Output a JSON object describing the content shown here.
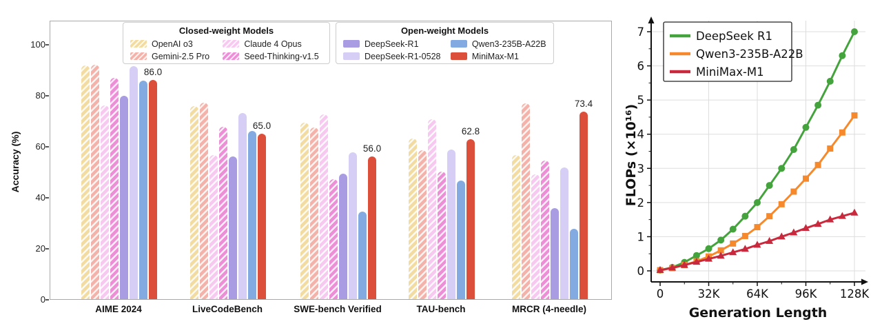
{
  "chart_data": [
    {
      "id": "benchmark-accuracy",
      "type": "bar",
      "title": "",
      "xlabel": "",
      "ylabel": "Accuracy (%)",
      "ylim": [
        0,
        100
      ],
      "yticks": [
        0,
        20,
        40,
        60,
        80,
        100
      ],
      "grid": false,
      "categories": [
        "AIME 2024",
        "LiveCodeBench",
        "SWE-bench Verified",
        "TAU-bench",
        "MRCR (4-needle)"
      ],
      "legend_groups": [
        {
          "title": "Closed-weight Models",
          "series": [
            "OpenAI o3",
            "Gemini-2.5 Pro",
            "Claude 4 Opus",
            "Seed-Thinking-v1.5"
          ]
        },
        {
          "title": "Open-weight Models",
          "series": [
            "DeepSeek-R1",
            "DeepSeek-R1-0528",
            "Qwen3-235B-A22B",
            "MiniMax-M1"
          ]
        }
      ],
      "series": [
        {
          "name": "OpenAI o3",
          "color": "#f3dca2",
          "hatch": true,
          "values": [
            91.6,
            75.8,
            69.1,
            63.0,
            56.5
          ]
        },
        {
          "name": "Gemini-2.5 Pro",
          "color": "#f3b3ab",
          "hatch": true,
          "values": [
            92.0,
            77.1,
            67.2,
            58.5,
            76.8
          ]
        },
        {
          "name": "Claude 4 Opus",
          "color": "#f7c9f0",
          "hatch": true,
          "values": [
            76.0,
            56.6,
            72.5,
            70.5,
            48.9
          ]
        },
        {
          "name": "Seed-Thinking-v1.5",
          "color": "#ed8fd6",
          "hatch": true,
          "values": [
            86.7,
            67.5,
            47.0,
            49.9,
            54.3
          ]
        },
        {
          "name": "DeepSeek-R1",
          "color": "#a99ce2",
          "hatch": false,
          "values": [
            79.8,
            55.9,
            49.2,
            null,
            35.8
          ]
        },
        {
          "name": "DeepSeek-R1-0528",
          "color": "#d6cef4",
          "hatch": false,
          "values": [
            91.4,
            73.1,
            57.6,
            58.7,
            51.5
          ]
        },
        {
          "name": "Qwen3-235B-A22B",
          "color": "#83abe1",
          "hatch": false,
          "values": [
            85.7,
            65.9,
            34.4,
            46.5,
            27.7
          ]
        },
        {
          "name": "MiniMax-M1",
          "color": "#db4f3b",
          "hatch": false,
          "values": [
            86.0,
            65.0,
            56.0,
            62.8,
            73.4
          ]
        }
      ],
      "annotations": {
        "series": "MiniMax-M1",
        "labels": [
          "86.0",
          "65.0",
          "56.0",
          "62.8",
          "73.4"
        ]
      }
    },
    {
      "id": "flops-vs-length",
      "type": "line",
      "title": "",
      "xlabel": "Generation Length",
      "ylabel": "FLOPs (×10¹⁶)",
      "xlim": [
        0,
        128
      ],
      "ylim": [
        0,
        7
      ],
      "grid": true,
      "legend_position": "upper left",
      "xticks": [
        {
          "v": 0,
          "label": "0"
        },
        {
          "v": 32,
          "label": "32K"
        },
        {
          "v": 64,
          "label": "64K"
        },
        {
          "v": 96,
          "label": "96K"
        },
        {
          "v": 128,
          "label": "128K"
        }
      ],
      "yticks": [
        0,
        1,
        2,
        3,
        4,
        5,
        6,
        7
      ],
      "x": [
        0,
        8,
        16,
        24,
        32,
        40,
        48,
        56,
        64,
        72,
        80,
        88,
        96,
        104,
        112,
        120,
        128
      ],
      "series": [
        {
          "name": "DeepSeek R1",
          "color": "#44a33c",
          "marker": "circle",
          "values": [
            0.02,
            0.1,
            0.25,
            0.45,
            0.65,
            0.9,
            1.22,
            1.6,
            2.0,
            2.5,
            3.0,
            3.55,
            4.2,
            4.85,
            5.55,
            6.3,
            7.0
          ]
        },
        {
          "name": "Qwen3-235B-A22B",
          "color": "#f5892c",
          "marker": "square",
          "values": [
            0.02,
            0.08,
            0.17,
            0.28,
            0.42,
            0.6,
            0.8,
            1.02,
            1.28,
            1.6,
            1.95,
            2.32,
            2.7,
            3.1,
            3.58,
            4.05,
            4.55
          ]
        },
        {
          "name": "MiniMax-M1",
          "color": "#c9293d",
          "marker": "triangle",
          "values": [
            0.02,
            0.09,
            0.17,
            0.26,
            0.35,
            0.44,
            0.54,
            0.64,
            0.76,
            0.87,
            1.0,
            1.12,
            1.25,
            1.37,
            1.5,
            1.6,
            1.7
          ]
        }
      ]
    }
  ]
}
